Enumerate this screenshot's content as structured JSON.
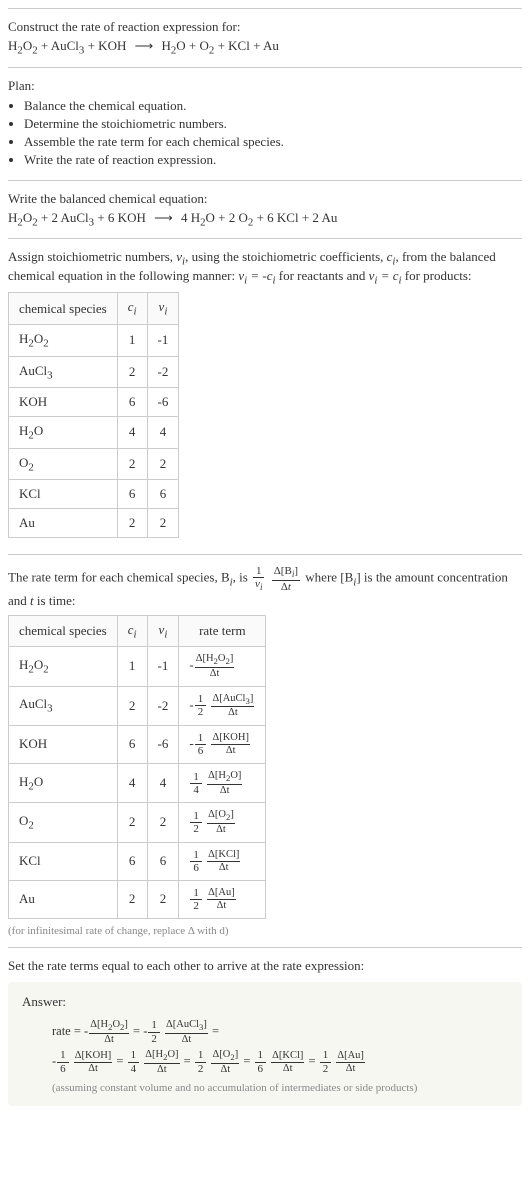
{
  "intro": {
    "prompt": "Construct the rate of reaction expression for:",
    "eq_lhs": "H2O2 + AuCl3 + KOH",
    "eq_rhs": "H2O + O2 + KCl + Au"
  },
  "plan": {
    "title": "Plan:",
    "items": [
      "Balance the chemical equation.",
      "Determine the stoichiometric numbers.",
      "Assemble the rate term for each chemical species.",
      "Write the rate of reaction expression."
    ]
  },
  "balanced": {
    "title": "Write the balanced chemical equation:",
    "eq_lhs": "H2O2 + 2 AuCl3 + 6 KOH",
    "eq_rhs": "4 H2O + 2 O2 + 6 KCl + 2 Au"
  },
  "assign": {
    "text1": "Assign stoichiometric numbers, ",
    "text2": ", using the stoichiometric coefficients, ",
    "text3": ", from the balanced chemical equation in the following manner: ",
    "text4": " for reactants and ",
    "text5": " for products:",
    "table": {
      "headers": [
        "chemical species",
        "cᵢ",
        "νᵢ"
      ],
      "rows": [
        {
          "sp": "H2O2",
          "c": "1",
          "v": "-1"
        },
        {
          "sp": "AuCl3",
          "c": "2",
          "v": "-2"
        },
        {
          "sp": "KOH",
          "c": "6",
          "v": "-6"
        },
        {
          "sp": "H2O",
          "c": "4",
          "v": "4"
        },
        {
          "sp": "O2",
          "c": "2",
          "v": "2"
        },
        {
          "sp": "KCl",
          "c": "6",
          "v": "6"
        },
        {
          "sp": "Au",
          "c": "2",
          "v": "2"
        }
      ]
    }
  },
  "rateterm": {
    "text1": "The rate term for each chemical species, B",
    "text2": ", is ",
    "text3": " where [B",
    "text4": "] is the amount concentration and ",
    "text5": " is time:",
    "table": {
      "headers": [
        "chemical species",
        "cᵢ",
        "νᵢ",
        "rate term"
      ],
      "rows": [
        {
          "sp": "H2O2",
          "c": "1",
          "v": "-1",
          "rt_sign": "-",
          "rt_coef_num": "",
          "rt_coef_den": "",
          "rt_num": "Δ[H2O2]",
          "rt_den": "Δt"
        },
        {
          "sp": "AuCl3",
          "c": "2",
          "v": "-2",
          "rt_sign": "-",
          "rt_coef_num": "1",
          "rt_coef_den": "2",
          "rt_num": "Δ[AuCl3]",
          "rt_den": "Δt"
        },
        {
          "sp": "KOH",
          "c": "6",
          "v": "-6",
          "rt_sign": "-",
          "rt_coef_num": "1",
          "rt_coef_den": "6",
          "rt_num": "Δ[KOH]",
          "rt_den": "Δt"
        },
        {
          "sp": "H2O",
          "c": "4",
          "v": "4",
          "rt_sign": "",
          "rt_coef_num": "1",
          "rt_coef_den": "4",
          "rt_num": "Δ[H2O]",
          "rt_den": "Δt"
        },
        {
          "sp": "O2",
          "c": "2",
          "v": "2",
          "rt_sign": "",
          "rt_coef_num": "1",
          "rt_coef_den": "2",
          "rt_num": "Δ[O2]",
          "rt_den": "Δt"
        },
        {
          "sp": "KCl",
          "c": "6",
          "v": "6",
          "rt_sign": "",
          "rt_coef_num": "1",
          "rt_coef_den": "6",
          "rt_num": "Δ[KCl]",
          "rt_den": "Δt"
        },
        {
          "sp": "Au",
          "c": "2",
          "v": "2",
          "rt_sign": "",
          "rt_coef_num": "1",
          "rt_coef_den": "2",
          "rt_num": "Δ[Au]",
          "rt_den": "Δt"
        }
      ]
    },
    "hint": "(for infinitesimal rate of change, replace Δ with d)"
  },
  "final": {
    "title": "Set the rate terms equal to each other to arrive at the rate expression:",
    "answer_label": "Answer:",
    "terms": [
      {
        "label": "rate",
        "sign": "",
        "coef_num": "",
        "coef_den": "",
        "num": "",
        "den": ""
      },
      {
        "label": "",
        "sign": "-",
        "coef_num": "",
        "coef_den": "",
        "num": "Δ[H2O2]",
        "den": "Δt"
      },
      {
        "label": "",
        "sign": "-",
        "coef_num": "1",
        "coef_den": "2",
        "num": "Δ[AuCl3]",
        "den": "Δt"
      },
      {
        "label": "",
        "sign": "-",
        "coef_num": "1",
        "coef_den": "6",
        "num": "Δ[KOH]",
        "den": "Δt"
      },
      {
        "label": "",
        "sign": "",
        "coef_num": "1",
        "coef_den": "4",
        "num": "Δ[H2O]",
        "den": "Δt"
      },
      {
        "label": "",
        "sign": "",
        "coef_num": "1",
        "coef_den": "2",
        "num": "Δ[O2]",
        "den": "Δt"
      },
      {
        "label": "",
        "sign": "",
        "coef_num": "1",
        "coef_den": "6",
        "num": "Δ[KCl]",
        "den": "Δt"
      },
      {
        "label": "",
        "sign": "",
        "coef_num": "1",
        "coef_den": "2",
        "num": "Δ[Au]",
        "den": "Δt"
      }
    ],
    "note": "(assuming constant volume and no accumulation of intermediates or side products)"
  },
  "colors": {
    "border": "#cccccc",
    "hint": "#888888",
    "answer_bg": "#f7f7f2"
  }
}
